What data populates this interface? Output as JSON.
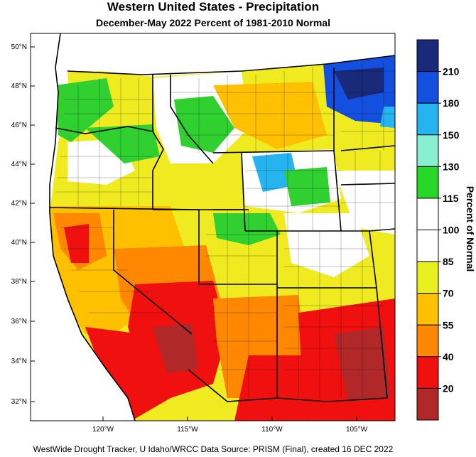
{
  "title": "Western United States - Precipitation",
  "subtitle": "December-May 2022  Percent of 1981-2010 Normal",
  "footer": "WestWide Drought Tracker, U Idaho/WRCC Data Source: PRISM (Final), created 16 DEC 2022",
  "map": {
    "lat_labels": [
      "50°N",
      "48°N",
      "46°N",
      "44°N",
      "42°N",
      "40°N",
      "38°N",
      "36°N",
      "34°N",
      "32°N"
    ],
    "lon_labels": [
      "120°W",
      "115°W",
      "110°W",
      "105°W"
    ]
  },
  "legend": {
    "title": "Percent of Normal",
    "labels": [
      "210",
      "180",
      "150",
      "130",
      "115",
      "100",
      "85",
      "70",
      "55",
      "40",
      "20"
    ],
    "colors": [
      "#1a2a7a",
      "#1450e0",
      "#25b4f0",
      "#88f0d0",
      "#28d828",
      "#ffffff",
      "#ffffff",
      "#e8f020",
      "#ffc000",
      "#ff8800",
      "#f01010",
      "#b02828"
    ]
  }
}
